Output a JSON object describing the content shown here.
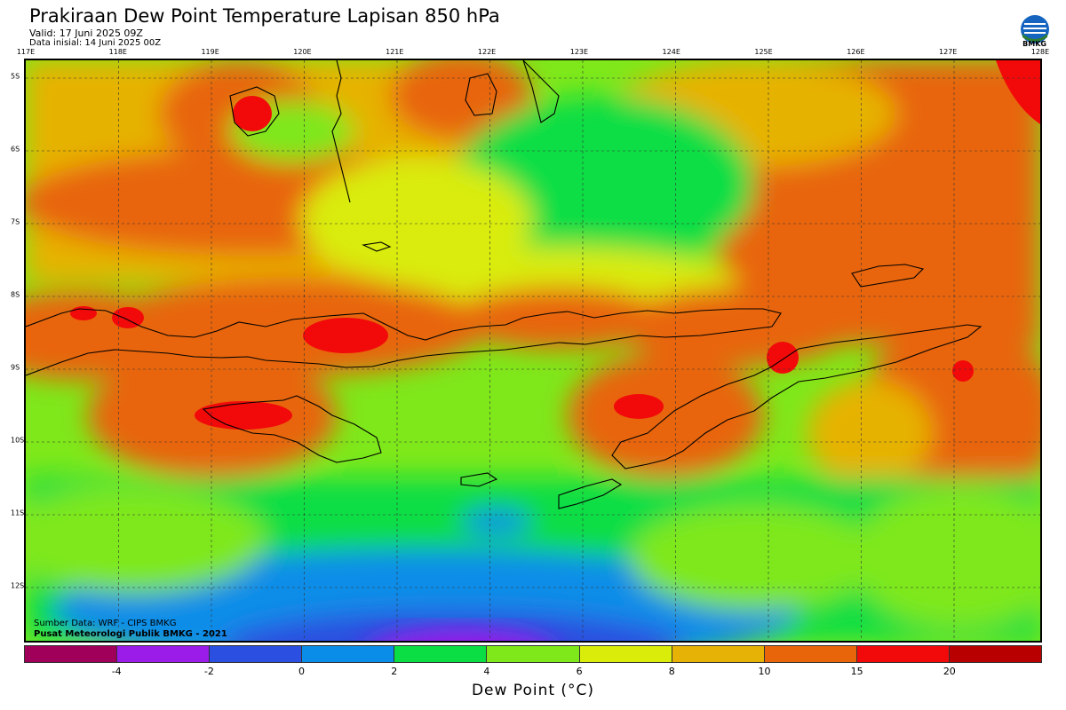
{
  "header": {
    "title": "Prakiraan Dew Point Temperature Lapisan 850 hPa",
    "valid": "Valid: 17 Juni 2025 09Z",
    "init": "Data inisial: 14 Juni 2025 00Z",
    "logo_text": "BMKG"
  },
  "map": {
    "lon_labels": [
      "117E",
      "118E",
      "119E",
      "120E",
      "121E",
      "122E",
      "123E",
      "124E",
      "125E",
      "126E",
      "127E",
      "128E"
    ],
    "lat_labels": [
      "5S",
      "6S",
      "7S",
      "8S",
      "9S",
      "10S",
      "11S",
      "12S"
    ],
    "source_line1": "Sumber Data: WRF - CIPS BMKG",
    "source_line2": "Pusat Meteorologi Publik BMKG - 2021"
  },
  "legend": {
    "title": "Dew Point (°C)",
    "ticks": [
      "-4",
      "-2",
      "0",
      "2",
      "4",
      "6",
      "8",
      "10",
      "15",
      "20"
    ],
    "colors": [
      "#a0005a",
      "#9b1be8",
      "#2b4fe0",
      "#0a8de8",
      "#0ade44",
      "#7ee81a",
      "#d9ec0a",
      "#e6b205",
      "#e8650a",
      "#f20a0a",
      "#b80000"
    ]
  }
}
